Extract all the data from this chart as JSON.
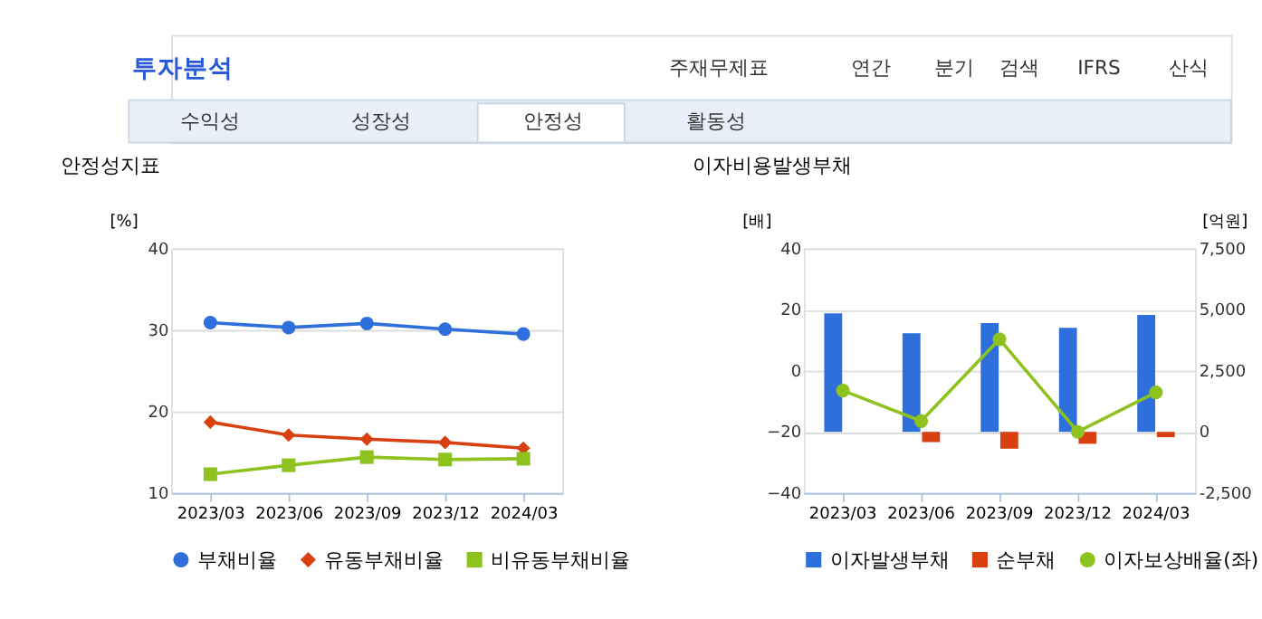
{
  "chart_data": [
    {
      "type": "line",
      "title": "안정성지표",
      "ylabel": "[%]",
      "annotations": [
        "투자분석",
        "주재무제표",
        "연간",
        "분기",
        "검색",
        "IFRS",
        "산식",
        "수익성",
        "성장성",
        "안정성",
        "활동성"
      ],
      "categories": [
        "2023/03",
        "2023/06",
        "2023/09",
        "2023/12",
        "2024/03"
      ],
      "series": [
        {
          "name": "부채비율",
          "color": "#2f6fdc",
          "marker": "circle",
          "values": [
            30.9,
            30.3,
            30.8,
            30.1,
            29.5
          ]
        },
        {
          "name": "유동부채비율",
          "color": "#d9400f",
          "marker": "diamond",
          "values": [
            18.7,
            17.1,
            16.6,
            16.2,
            15.5
          ]
        },
        {
          "name": "비유동부채비율",
          "color": "#8dc21f",
          "marker": "square",
          "values": [
            12.3,
            13.4,
            14.4,
            14.1,
            14.2
          ]
        }
      ],
      "ylim": [
        10,
        40
      ],
      "yticks": [
        10,
        20,
        30,
        40
      ],
      "grid": "y",
      "legend": "bottom"
    },
    {
      "type": "bar",
      "title": "이자비용발생부채",
      "ylabel": "[배]",
      "y2label": "[억원]",
      "categories": [
        "2023/03",
        "2023/06",
        "2023/09",
        "2023/12",
        "2024/03"
      ],
      "series": [
        {
          "name": "이자발생부채",
          "color": "#2f6fdc",
          "axis": "y2",
          "values": [
            4850,
            4030,
            4450,
            4250,
            4780
          ]
        },
        {
          "name": "순부채",
          "color": "#d9400f",
          "axis": "y2",
          "values": [
            null,
            -420,
            -690,
            -490,
            -220
          ]
        },
        {
          "name": "이자보상배율(좌)",
          "type": "line",
          "color": "#8dc21f",
          "marker": "circle",
          "values": [
            -6.5,
            -16.5,
            10.3,
            -20.0,
            -7.1
          ]
        }
      ],
      "ylim": [
        -40,
        40
      ],
      "yticks": [
        -40,
        -20,
        0,
        20,
        40
      ],
      "y2lim": [
        -2500,
        7500
      ],
      "y2ticks": [
        {
          "value": -2500,
          "label": "-2,500"
        },
        0,
        {
          "value": 2500,
          "label": "2,500"
        },
        {
          "value": 5000,
          "label": "5,000"
        },
        {
          "value": 7500,
          "label": "7,500"
        }
      ],
      "grid": "y",
      "legend": "bottom"
    }
  ]
}
